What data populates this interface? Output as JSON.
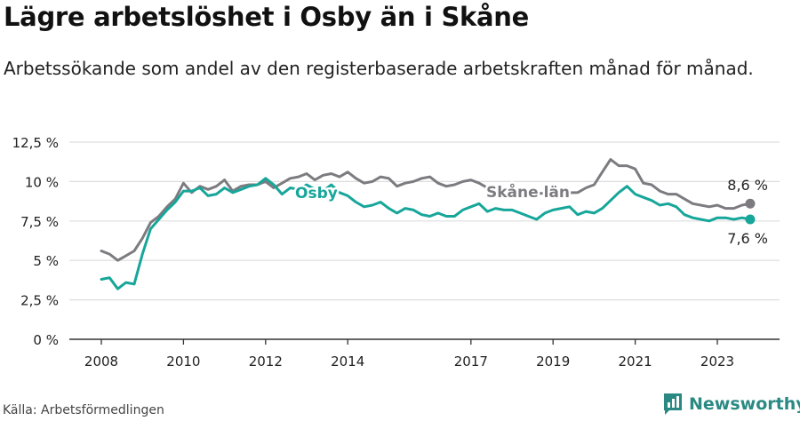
{
  "title": "Lägre arbetslöshet i Osby än i Skåne",
  "subtitle": "Arbetssökande som andel av den registerbaserade arbetskraften månad för månad.",
  "source": "Källa: Arbetsförmedlingen",
  "brand": "Newsworthy",
  "colors": {
    "osby": "#17a69a",
    "skane": "#7d7b80",
    "grid": "#dddddd",
    "axis": "#333333",
    "brand": "#2a8a83"
  },
  "chart_data": {
    "type": "line",
    "title": "Lägre arbetslöshet i Osby än i Skåne",
    "xlabel": "",
    "ylabel": "",
    "xlim": [
      2008,
      2024
    ],
    "ylim": [
      0,
      12.5
    ],
    "grid": true,
    "yticks": [
      0,
      2.5,
      5,
      7.5,
      10,
      12.5
    ],
    "ytick_labels": [
      "0 %",
      "2,5 %",
      "5 %",
      "7,5 %",
      "10 %",
      "12,5 %"
    ],
    "xticks": [
      2008,
      2010,
      2012,
      2014,
      2017,
      2019,
      2021,
      2023
    ],
    "xtick_labels": [
      "2008",
      "2010",
      "2012",
      "2014",
      "2017",
      "2019",
      "2021",
      "2023"
    ],
    "series": [
      {
        "name": "Skåne län",
        "label": "Skåne län",
        "end_label": "8,6 %",
        "x": [
          2008.0,
          2008.2,
          2008.4,
          2008.6,
          2008.8,
          2009.0,
          2009.2,
          2009.4,
          2009.6,
          2009.8,
          2010.0,
          2010.2,
          2010.4,
          2010.6,
          2010.8,
          2011.0,
          2011.2,
          2011.4,
          2011.6,
          2011.8,
          2012.0,
          2012.2,
          2012.4,
          2012.6,
          2012.8,
          2013.0,
          2013.2,
          2013.4,
          2013.6,
          2013.8,
          2014.0,
          2014.2,
          2014.4,
          2014.6,
          2014.8,
          2015.0,
          2015.2,
          2015.4,
          2015.6,
          2015.8,
          2016.0,
          2016.2,
          2016.4,
          2016.6,
          2016.8,
          2017.0,
          2017.2,
          2017.4,
          2017.6,
          2017.8,
          2019.6,
          2019.8,
          2020.0,
          2020.2,
          2020.4,
          2020.6,
          2020.8,
          2021.0,
          2021.2,
          2021.4,
          2021.6,
          2021.8,
          2022.0,
          2022.2,
          2022.4,
          2022.6,
          2022.8,
          2023.0,
          2023.2,
          2023.4,
          2023.6,
          2023.8
        ],
        "values": [
          5.6,
          5.4,
          5.0,
          5.3,
          5.6,
          6.4,
          7.4,
          7.8,
          8.4,
          8.9,
          9.9,
          9.3,
          9.7,
          9.5,
          9.7,
          10.1,
          9.4,
          9.7,
          9.8,
          9.8,
          10.0,
          9.6,
          9.9,
          10.2,
          10.3,
          10.5,
          10.1,
          10.4,
          10.5,
          10.3,
          10.6,
          10.2,
          9.9,
          10.0,
          10.3,
          10.2,
          9.7,
          9.9,
          10.0,
          10.2,
          10.3,
          9.9,
          9.7,
          9.8,
          10.0,
          10.1,
          9.9,
          9.6,
          9.3,
          9.2,
          9.3,
          9.6,
          9.8,
          10.6,
          11.4,
          11.0,
          11.0,
          10.8,
          9.9,
          9.8,
          9.4,
          9.2,
          9.2,
          8.9,
          8.6,
          8.5,
          8.4,
          8.5,
          8.3,
          8.3,
          8.5,
          8.6
        ]
      },
      {
        "name": "Osby",
        "label": "Osby",
        "end_label": "7,6 %",
        "x": [
          2008.0,
          2008.2,
          2008.4,
          2008.6,
          2008.8,
          2009.0,
          2009.2,
          2009.4,
          2009.6,
          2009.8,
          2010.0,
          2010.2,
          2010.4,
          2010.6,
          2010.8,
          2011.0,
          2011.2,
          2011.4,
          2011.6,
          2011.8,
          2012.0,
          2012.2,
          2012.4,
          2012.6,
          2012.8,
          2013.0,
          2013.2,
          2013.4,
          2013.6,
          2013.8,
          2014.0,
          2014.2,
          2014.4,
          2014.6,
          2014.8,
          2015.0,
          2015.2,
          2015.4,
          2015.6,
          2015.8,
          2016.0,
          2016.2,
          2016.4,
          2016.6,
          2016.8,
          2017.0,
          2017.2,
          2017.4,
          2017.6,
          2017.8,
          2018.0,
          2018.2,
          2018.4,
          2018.6,
          2018.8,
          2019.0,
          2019.2,
          2019.4,
          2019.6,
          2019.8,
          2020.0,
          2020.2,
          2020.4,
          2020.6,
          2020.8,
          2021.0,
          2021.2,
          2021.4,
          2021.6,
          2021.8,
          2022.0,
          2022.2,
          2022.4,
          2022.6,
          2022.8,
          2023.0,
          2023.2,
          2023.4,
          2023.6,
          2023.8
        ],
        "values": [
          3.8,
          3.9,
          3.2,
          3.6,
          3.5,
          5.4,
          7.0,
          7.6,
          8.2,
          8.7,
          9.4,
          9.4,
          9.6,
          9.1,
          9.2,
          9.6,
          9.3,
          9.5,
          9.7,
          9.8,
          10.2,
          9.8,
          9.2,
          9.6,
          9.5,
          9.8,
          9.5,
          9.4,
          9.8,
          9.3,
          9.1,
          8.7,
          8.4,
          8.5,
          8.7,
          8.3,
          8.0,
          8.3,
          8.2,
          7.9,
          7.8,
          8.0,
          7.8,
          7.8,
          8.2,
          8.4,
          8.6,
          8.1,
          8.3,
          8.2,
          8.2,
          8.0,
          7.8,
          7.6,
          8.0,
          8.2,
          8.3,
          8.4,
          7.9,
          8.1,
          8.0,
          8.3,
          8.8,
          9.3,
          9.7,
          9.2,
          9.0,
          8.8,
          8.5,
          8.6,
          8.4,
          7.9,
          7.7,
          7.6,
          7.5,
          7.7,
          7.7,
          7.6,
          7.7,
          7.6
        ]
      }
    ]
  }
}
